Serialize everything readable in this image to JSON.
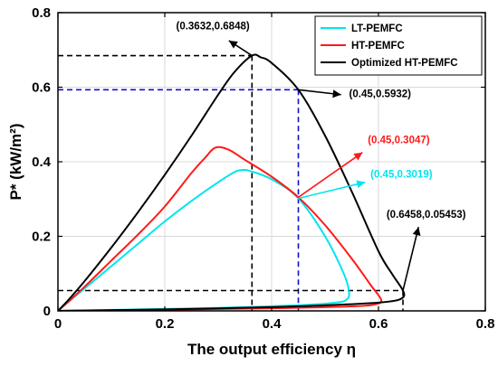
{
  "chart_data": {
    "type": "line",
    "xlabel": "The output efficiency η",
    "ylabel": "P* (kW/m²)",
    "xlim": [
      0,
      0.8
    ],
    "ylim": [
      0,
      0.8
    ],
    "xticks": [
      "0",
      "0.2",
      "0.4",
      "0.6",
      "0.8"
    ],
    "yticks": [
      "0",
      "0.2",
      "0.4",
      "0.6",
      "0.8"
    ],
    "grid": true,
    "legend_position": "top-right",
    "series": [
      {
        "name": "LT-PEMFC",
        "color": "#00e5ee",
        "points": [
          [
            0.0,
            0.0
          ],
          [
            0.02,
            0.025
          ],
          [
            0.05,
            0.06
          ],
          [
            0.1,
            0.12
          ],
          [
            0.15,
            0.18
          ],
          [
            0.2,
            0.24
          ],
          [
            0.25,
            0.295
          ],
          [
            0.3,
            0.345
          ],
          [
            0.33,
            0.372
          ],
          [
            0.345,
            0.378
          ],
          [
            0.36,
            0.375
          ],
          [
            0.4,
            0.353
          ],
          [
            0.45,
            0.3019
          ],
          [
            0.5,
            0.2
          ],
          [
            0.535,
            0.1
          ],
          [
            0.545,
            0.05
          ],
          [
            0.54,
            0.03
          ],
          [
            0.52,
            0.022
          ],
          [
            0.45,
            0.015
          ],
          [
            0.3,
            0.008
          ],
          [
            0.15,
            0.004
          ],
          [
            0.0,
            0.0
          ]
        ]
      },
      {
        "name": "HT-PEMFC",
        "color": "#ff1a1a",
        "points": [
          [
            0.0,
            0.0
          ],
          [
            0.02,
            0.025
          ],
          [
            0.05,
            0.065
          ],
          [
            0.1,
            0.135
          ],
          [
            0.15,
            0.205
          ],
          [
            0.2,
            0.28
          ],
          [
            0.25,
            0.37
          ],
          [
            0.275,
            0.41
          ],
          [
            0.295,
            0.438
          ],
          [
            0.32,
            0.432
          ],
          [
            0.35,
            0.405
          ],
          [
            0.4,
            0.36
          ],
          [
            0.45,
            0.3047
          ],
          [
            0.5,
            0.23
          ],
          [
            0.55,
            0.14
          ],
          [
            0.585,
            0.07
          ],
          [
            0.605,
            0.03
          ],
          [
            0.595,
            0.018
          ],
          [
            0.55,
            0.012
          ],
          [
            0.4,
            0.007
          ],
          [
            0.2,
            0.003
          ],
          [
            0.0,
            0.0
          ]
        ]
      },
      {
        "name": "Optimized HT-PEMFC",
        "color": "#000000",
        "points": [
          [
            0.0,
            0.0
          ],
          [
            0.02,
            0.03
          ],
          [
            0.05,
            0.08
          ],
          [
            0.1,
            0.17
          ],
          [
            0.15,
            0.265
          ],
          [
            0.2,
            0.365
          ],
          [
            0.25,
            0.47
          ],
          [
            0.3,
            0.58
          ],
          [
            0.33,
            0.64
          ],
          [
            0.3632,
            0.6848
          ],
          [
            0.38,
            0.68
          ],
          [
            0.4,
            0.665
          ],
          [
            0.45,
            0.5932
          ],
          [
            0.5,
            0.47
          ],
          [
            0.55,
            0.32
          ],
          [
            0.6,
            0.16
          ],
          [
            0.625,
            0.1
          ],
          [
            0.6458,
            0.05453
          ],
          [
            0.645,
            0.035
          ],
          [
            0.62,
            0.025
          ],
          [
            0.55,
            0.018
          ],
          [
            0.4,
            0.01
          ],
          [
            0.2,
            0.004
          ],
          [
            0.0,
            0.0
          ]
        ]
      }
    ],
    "reference_lines": [
      {
        "color": "#000000",
        "x": 0.3632,
        "y": 0.6848
      },
      {
        "color": "#1010d0",
        "x": 0.45,
        "y": 0.5932
      },
      {
        "color": "#000000",
        "x": 0.6458,
        "y": 0.05453
      }
    ],
    "annotations": [
      {
        "text": "(0.3632,0.6848)",
        "color": "#000000",
        "tip": [
          0.3632,
          0.6848
        ],
        "tail": [
          0.32,
          0.725
        ],
        "label": [
          0.29,
          0.755
        ],
        "anchor": "middle",
        "arrow": true
      },
      {
        "text": "(0.45,0.5932)",
        "color": "#000000",
        "tip": [
          0.45,
          0.5932
        ],
        "tail": [
          0.53,
          0.58
        ],
        "label": [
          0.545,
          0.573
        ],
        "anchor": "start",
        "arrow": true
      },
      {
        "text": "(0.45,0.3047)",
        "color": "#ff1a1a",
        "tip": [
          0.45,
          0.3047
        ],
        "tail": [
          0.57,
          0.425
        ],
        "label": [
          0.58,
          0.45
        ],
        "anchor": "start",
        "arrow": true
      },
      {
        "text": "(0.45,0.3019)",
        "color": "#00e5ee",
        "tip": [
          0.45,
          0.3019
        ],
        "tail": [
          0.575,
          0.345
        ],
        "label": [
          0.585,
          0.358
        ],
        "anchor": "start",
        "arrow": true
      },
      {
        "text": "(0.6458,0.05453)",
        "color": "#000000",
        "tip": [
          0.6458,
          0.05453
        ],
        "tail": [
          0.675,
          0.225
        ],
        "label": [
          0.615,
          0.25
        ],
        "anchor": "start",
        "arrow": true
      }
    ]
  }
}
